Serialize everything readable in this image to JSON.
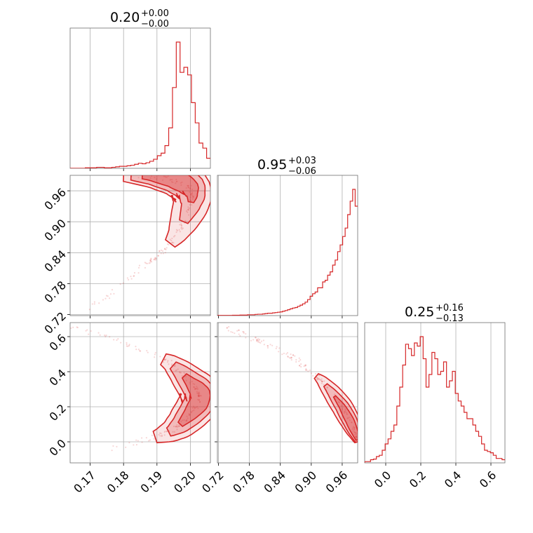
{
  "chart_data": {
    "type": "corner",
    "colors": {
      "series": "#d62728",
      "grid": "#b0b0b0",
      "frame": "#6f6f6f"
    },
    "params": [
      {
        "median": "0.20",
        "plus": "+0.00",
        "minus": "−0.00",
        "range": [
          0.164,
          0.206
        ],
        "ticks": [
          {
            "v": 0.17,
            "label": "0.17"
          },
          {
            "v": 0.18,
            "label": "0.18"
          },
          {
            "v": 0.19,
            "label": "0.19"
          },
          {
            "v": 0.2,
            "label": "0.20"
          }
        ]
      },
      {
        "median": "0.95",
        "plus": "+0.03",
        "minus": "−0.06",
        "range": [
          0.718,
          0.99
        ],
        "ticks": [
          {
            "v": 0.72,
            "label": "0.72"
          },
          {
            "v": 0.78,
            "label": "0.78"
          },
          {
            "v": 0.84,
            "label": "0.84"
          },
          {
            "v": 0.9,
            "label": "0.90"
          },
          {
            "v": 0.96,
            "label": "0.96"
          }
        ]
      },
      {
        "median": "0.25",
        "plus": "+0.16",
        "minus": "−0.13",
        "range": [
          -0.12,
          0.68
        ],
        "ticks": [
          {
            "v": 0.0,
            "label": "0.0"
          },
          {
            "v": 0.2,
            "label": "0.2"
          },
          {
            "v": 0.4,
            "label": "0.4"
          },
          {
            "v": 0.6,
            "label": "0.6"
          }
        ]
      }
    ],
    "histograms": [
      {
        "edges_from": 0.164,
        "edges_to": 0.206,
        "counts": [
          0,
          0,
          0,
          0,
          1,
          1,
          1,
          2,
          2,
          1,
          1,
          2,
          3,
          4,
          4,
          5,
          6,
          8,
          10,
          9,
          11,
          14,
          18,
          25,
          30,
          45,
          80,
          160,
          250,
          190,
          200,
          185,
          130,
          90,
          50,
          40,
          20
        ]
      },
      {
        "edges_from": 0.718,
        "edges_to": 0.99,
        "counts": [
          1,
          1,
          1,
          1,
          1,
          1,
          2,
          2,
          2,
          3,
          3,
          3,
          5,
          5,
          5,
          7,
          8,
          8,
          10,
          12,
          14,
          14,
          16,
          18,
          20,
          22,
          26,
          30,
          35,
          40,
          45,
          48,
          55,
          62,
          70,
          80,
          95,
          115,
          130,
          140,
          165,
          165,
          200,
          210,
          240,
          260,
          300,
          330,
          380,
          420,
          470,
          520,
          600,
          680,
          750,
          650
        ]
      },
      {
        "edges_from": -0.12,
        "edges_to": 0.68,
        "counts": [
          2,
          2,
          5,
          6,
          10,
          12,
          20,
          30,
          38,
          50,
          60,
          90,
          120,
          155,
          188,
          181,
          170,
          190,
          185,
          200,
          165,
          120,
          140,
          175,
          165,
          140,
          145,
          160,
          120,
          130,
          145,
          110,
          98,
          90,
          80,
          70,
          70,
          60,
          50,
          42,
          30,
          20,
          18,
          16,
          12,
          7,
          7,
          5
        ]
      }
    ],
    "pairs": [
      {
        "x_param": 0,
        "y_param": 1,
        "curve": [
          [
            0.164,
            0.63
          ],
          [
            0.17,
            0.735
          ],
          [
            0.178,
            0.768
          ],
          [
            0.184,
            0.805
          ],
          [
            0.189,
            0.828
          ],
          [
            0.193,
            0.85
          ],
          [
            0.196,
            0.875
          ],
          [
            0.198,
            0.9
          ],
          [
            0.2,
            0.93
          ],
          [
            0.2005,
            0.95
          ],
          [
            0.2,
            0.965
          ],
          [
            0.198,
            0.975
          ],
          [
            0.194,
            0.983
          ],
          [
            0.188,
            0.988
          ],
          [
            0.18,
            0.99
          ]
        ],
        "contours": [
          {
            "level": "outer",
            "width": 0.006,
            "tmin": 0.38,
            "tmax": 1.0
          },
          {
            "level": "mid",
            "width": 0.0045,
            "tmin": 0.5,
            "tmax": 0.98
          },
          {
            "level": "inner",
            "width": 0.0028,
            "tmin": 0.6,
            "tmax": 0.95
          }
        ]
      },
      {
        "x_param": 0,
        "y_param": 2,
        "curve": [
          [
            0.164,
            0.66
          ],
          [
            0.17,
            0.625
          ],
          [
            0.178,
            0.58
          ],
          [
            0.184,
            0.535
          ],
          [
            0.19,
            0.49
          ],
          [
            0.194,
            0.45
          ],
          [
            0.197,
            0.4
          ],
          [
            0.2,
            0.34
          ],
          [
            0.202,
            0.3
          ],
          [
            0.203,
            0.27
          ],
          [
            0.2025,
            0.22
          ],
          [
            0.2,
            0.16
          ],
          [
            0.197,
            0.1
          ],
          [
            0.194,
            0.06
          ],
          [
            0.19,
            0.03
          ],
          [
            0.183,
            -0.005
          ],
          [
            0.176,
            -0.04
          ]
        ],
        "contours": [
          {
            "level": "outer",
            "width": 0.006,
            "tmin": 0.28,
            "tmax": 0.88
          },
          {
            "level": "mid",
            "width": 0.0045,
            "tmin": 0.33,
            "tmax": 0.82
          },
          {
            "level": "inner",
            "width": 0.003,
            "tmin": 0.4,
            "tmax": 0.75
          }
        ]
      },
      {
        "x_param": 1,
        "y_param": 2,
        "curve": [
          [
            0.718,
            0.665
          ],
          [
            0.76,
            0.62
          ],
          [
            0.8,
            0.575
          ],
          [
            0.84,
            0.52
          ],
          [
            0.87,
            0.47
          ],
          [
            0.9,
            0.4
          ],
          [
            0.92,
            0.35
          ],
          [
            0.94,
            0.28
          ],
          [
            0.96,
            0.2
          ],
          [
            0.975,
            0.12
          ],
          [
            0.985,
            0.05
          ],
          [
            0.99,
            0.0
          ]
        ],
        "contours": [
          {
            "level": "outer",
            "width": 0.02,
            "tmin": 0.5,
            "tmax": 1.0
          },
          {
            "level": "mid",
            "width": 0.014,
            "tmin": 0.58,
            "tmax": 1.0
          },
          {
            "level": "inner",
            "width": 0.008,
            "tmin": 0.66,
            "tmax": 0.98
          }
        ]
      }
    ]
  }
}
